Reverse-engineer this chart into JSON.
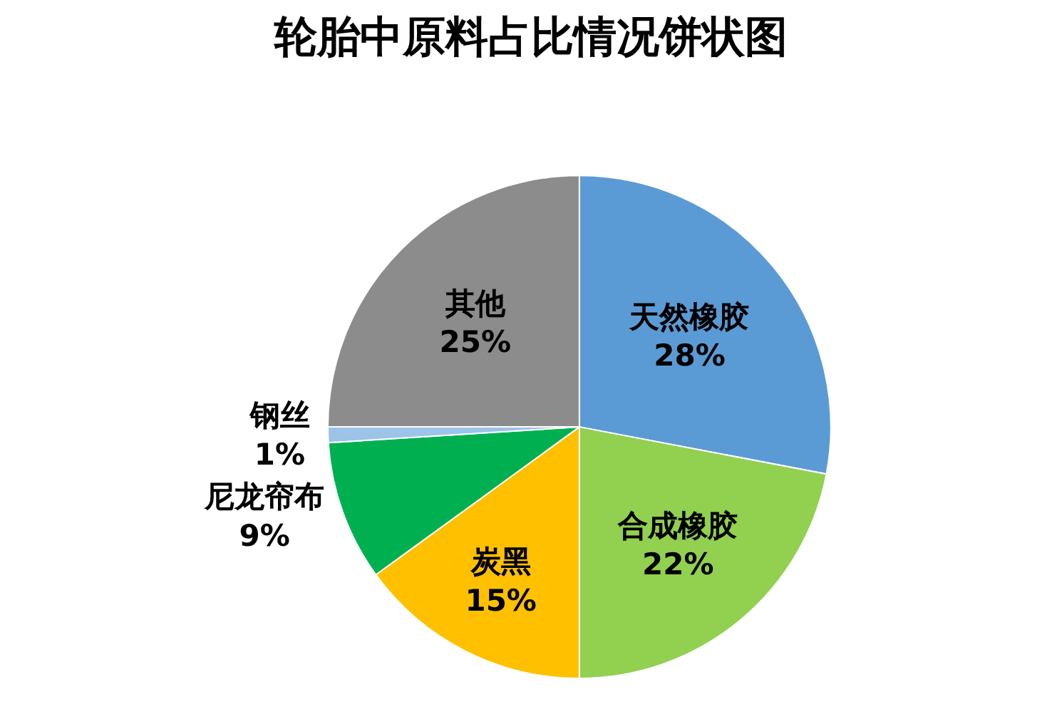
{
  "chart_data": {
    "type": "pie",
    "title": "轮胎中原料占比情况饼状图",
    "categories": [
      "天然橡胶",
      "合成橡胶",
      "炭黑",
      "尼龙帘布",
      "钢丝",
      "其他"
    ],
    "values": [
      28,
      22,
      15,
      9,
      1,
      25
    ],
    "value_labels": [
      "28%",
      "22%",
      "15%",
      "9%",
      "1%",
      "25%"
    ],
    "colors": [
      "#5b9bd5",
      "#92d050",
      "#ffc000",
      "#00b050",
      "#9dc3e6",
      "#8c8c8c"
    ],
    "legend": false
  }
}
